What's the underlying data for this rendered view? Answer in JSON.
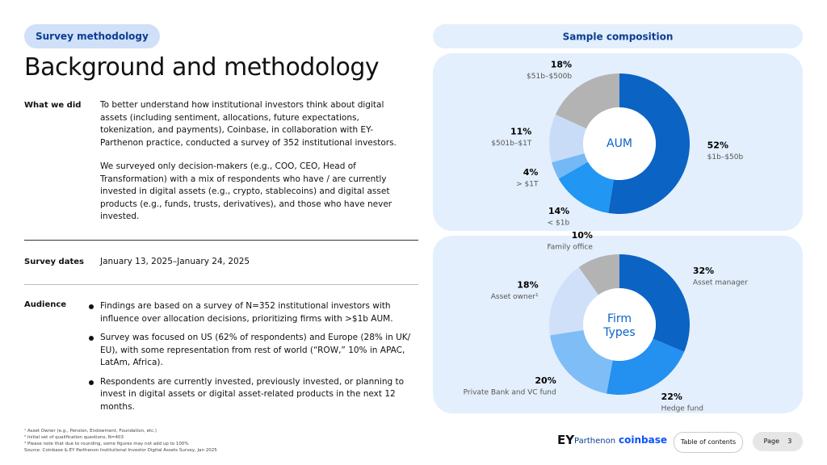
{
  "header": {
    "tag": "Survey methodology",
    "title": "Background and methodology"
  },
  "sections": [
    {
      "label": "What we did",
      "paragraphs": [
        "To better understand how institutional investors think about digital assets (including sentiment, allocations, future expectations, tokenization, and payments), Coinbase, in collaboration with EY-Parthenon practice, conducted a survey of 352 institutional investors.",
        "We surveyed only decision-makers (e.g., COO, CEO, Head of Transformation) with a mix of respondents who have / are currently invested in digital assets (e.g., crypto, stablecoins) and digital asset products (e.g., funds, trusts, derivatives), and those who have never invested."
      ]
    },
    {
      "label": "Survey dates",
      "paragraphs": [
        "January 13, 2025–January 24, 2025"
      ]
    },
    {
      "label": "Audience",
      "bullets": [
        "Findings are based on a survey of N=352 institutional investors with influence over allocation decisions, prioritizing firms with >$1b AUM.",
        "Survey was focused on US (62% of respondents) and Europe (28% in UK/ EU), with some representation from rest of world (“ROW,” 10% in APAC, LatAm, Africa).",
        "Respondents are currently invested, previously invested, or planning to invest in digital assets or digital asset-related products in the next 12 months."
      ]
    }
  ],
  "panel_title": "Sample composition",
  "chart_data": [
    {
      "type": "donut",
      "center_label": "AUM",
      "categories": [
        "$1b–$50b",
        "< $1b",
        "> $1T",
        "$501b–$1T",
        "$51b–$500b"
      ],
      "values": [
        52,
        14,
        4,
        11,
        18
      ],
      "value_labels": [
        "52%",
        "14%",
        "4%",
        "11%",
        "18%"
      ],
      "colors": [
        "#0b63c4",
        "#2196f3",
        "#74b9f5",
        "#c9dcf7",
        "#b3b3b3"
      ]
    },
    {
      "type": "donut",
      "center_label": "Firm Types",
      "categories": [
        "Asset manager",
        "Hedge fund",
        "Private Bank and VC fund",
        "Asset owner¹",
        "Family office"
      ],
      "values": [
        32,
        22,
        20,
        18,
        10
      ],
      "value_labels": [
        "32%",
        "22%",
        "20%",
        "18%",
        "10%"
      ],
      "colors": [
        "#0b63c4",
        "#2490f0",
        "#7fbdf7",
        "#cfe0f8",
        "#b3b3b3"
      ]
    }
  ],
  "footnotes": [
    "¹ Asset Owner (e.g., Pension, Endowment, Foundation, etc.)",
    "² Initial set of qualification questions, N=403",
    "³ Please note that due to rounding, some figures may not add up to 100%",
    "Source: Coinbase & EY Parthenon Institutional Investor Digital Assets Survey, Jan 2025"
  ],
  "footer": {
    "ey": "EY",
    "parthenon": "Parthenon",
    "coinbase": "coinbase",
    "toc": "Table of contents",
    "page_label": "Page",
    "page_number": "3"
  }
}
